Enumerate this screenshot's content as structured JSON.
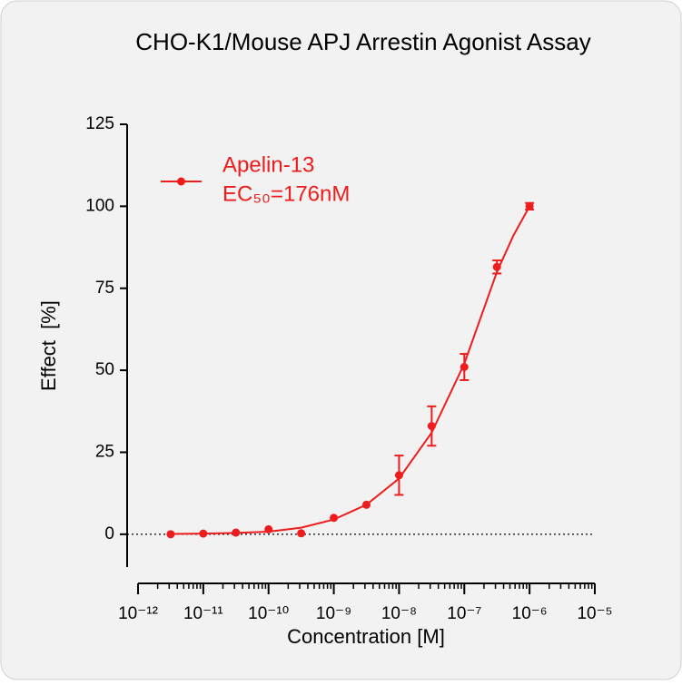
{
  "chart_data": {
    "type": "dose-response",
    "title": "CHO-K1/Mouse APJ Arrestin Agonist Assay",
    "x_label": "Concentration [M]",
    "y_label": "Effect  [%]",
    "xscale": "log",
    "xminor": true,
    "zero_line": true,
    "legend": "upper left",
    "xlim": [
      1e-12,
      1e-05
    ],
    "xticks": [
      {
        "value": 1e-12,
        "label": "10⁻¹²"
      },
      {
        "value": 1e-11,
        "label": "10⁻¹¹"
      },
      {
        "value": 1e-10,
        "label": "10⁻¹⁰"
      },
      {
        "value": 1e-09,
        "label": "10⁻⁹"
      },
      {
        "value": 1e-08,
        "label": "10⁻⁸"
      },
      {
        "value": 1e-07,
        "label": "10⁻⁷"
      },
      {
        "value": 1e-06,
        "label": "10⁻⁶"
      },
      {
        "value": 1e-05,
        "label": "10⁻⁵"
      }
    ],
    "ylim": [
      -10,
      125
    ],
    "yticks": [
      0,
      25,
      50,
      75,
      100,
      125
    ],
    "series": [
      {
        "name": "Apelin-13",
        "annotation": "EC₅₀=176nM",
        "color": "#ee1c1c",
        "x": [
          3.162e-12,
          1e-11,
          3.162e-11,
          1e-10,
          3.162e-10,
          1e-09,
          3.162e-09,
          1e-08,
          3.162e-08,
          1e-07,
          3.162e-07,
          1e-06
        ],
        "values": [
          0,
          0.2,
          0.5,
          1.5,
          0.3,
          5,
          9,
          18,
          33,
          51,
          81.5,
          100
        ],
        "errors": [
          null,
          null,
          null,
          null,
          null,
          null,
          null,
          6,
          6,
          4,
          2,
          1
        ],
        "fit_x": [
          3.162e-12,
          1e-11,
          3.162e-11,
          1e-10,
          3.162e-10,
          1e-09,
          3.162e-09,
          1e-08,
          3.162e-08,
          1e-07,
          1.778e-07,
          3.162e-07,
          5.623e-07,
          1e-06
        ],
        "fit_values": [
          0.1,
          0.2,
          0.4,
          0.8,
          2,
          4.5,
          9,
          17,
          31,
          52,
          66,
          80,
          91,
          100
        ]
      }
    ]
  }
}
